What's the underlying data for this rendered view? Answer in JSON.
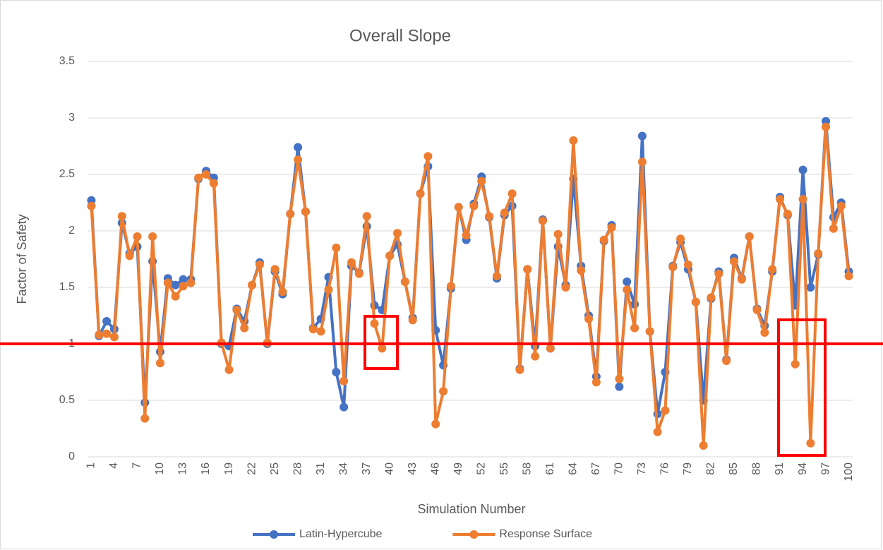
{
  "chart_data": {
    "type": "line",
    "title": "Overall Slope",
    "xlabel": "Simulation Number",
    "ylabel": "Factor of Safety",
    "categories": [
      1,
      null,
      null,
      4,
      null,
      null,
      7,
      null,
      null,
      10,
      null,
      null,
      13,
      null,
      null,
      16,
      null,
      null,
      19,
      null,
      null,
      22,
      null,
      null,
      25,
      null,
      null,
      28,
      null,
      null,
      31,
      null,
      null,
      34,
      null,
      null,
      37,
      null,
      null,
      40,
      null,
      null,
      43,
      null,
      null,
      46,
      null,
      null,
      49,
      null,
      null,
      52,
      null,
      null,
      55,
      null,
      null,
      58,
      null,
      null,
      61,
      null,
      null,
      64,
      null,
      null,
      67,
      null,
      null,
      70,
      null,
      null,
      73,
      null,
      null,
      76,
      null,
      null,
      79,
      null,
      null,
      82,
      null,
      null,
      85,
      null,
      null,
      88,
      null,
      null,
      91,
      null,
      null,
      94,
      null,
      null,
      97,
      null,
      null,
      100
    ],
    "series": [
      {
        "name": "Latin-Hypercube",
        "color": "#4472c4",
        "values": [
          2.27,
          1.07,
          1.2,
          1.13,
          2.07,
          1.8,
          1.86,
          0.48,
          1.73,
          0.93,
          1.58,
          1.52,
          1.57,
          1.57,
          2.46,
          2.53,
          2.47,
          1.0,
          0.98,
          1.31,
          1.2,
          1.52,
          1.72,
          1.0,
          1.64,
          1.44,
          2.15,
          2.74,
          2.17,
          1.14,
          1.22,
          1.59,
          0.75,
          0.44,
          1.69,
          1.63,
          2.04,
          1.34,
          1.3,
          1.78,
          1.88,
          1.55,
          1.23,
          2.33,
          2.57,
          1.12,
          0.81,
          1.49,
          2.21,
          1.92,
          2.24,
          2.48,
          2.12,
          1.58,
          2.14,
          2.22,
          0.78,
          1.66,
          0.98,
          2.1,
          0.96,
          1.86,
          1.52,
          2.46,
          1.69,
          1.25,
          0.71,
          1.91,
          2.05,
          0.62,
          1.55,
          1.35,
          2.84,
          1.11,
          0.38,
          0.75,
          1.69,
          1.9,
          1.66,
          1.37,
          0.5,
          1.4,
          1.64,
          0.86,
          1.76,
          1.58,
          1.95,
          1.31,
          1.16,
          1.64,
          2.3,
          2.14,
          1.34,
          2.54,
          1.5,
          1.79,
          2.97,
          2.12,
          2.25,
          1.64
        ]
      },
      {
        "name": "Response Surface",
        "color": "#ed7d31",
        "values": [
          2.22,
          1.08,
          1.09,
          1.06,
          2.13,
          1.78,
          1.95,
          0.34,
          1.95,
          0.83,
          1.54,
          1.42,
          1.51,
          1.54,
          2.47,
          2.5,
          2.42,
          1.01,
          0.77,
          1.3,
          1.14,
          1.52,
          1.7,
          1.01,
          1.66,
          1.46,
          2.15,
          2.63,
          2.17,
          1.13,
          1.11,
          1.48,
          1.85,
          0.67,
          1.72,
          1.62,
          2.13,
          1.18,
          0.96,
          1.78,
          1.98,
          1.55,
          1.21,
          2.33,
          2.66,
          0.29,
          0.58,
          1.51,
          2.21,
          1.96,
          2.22,
          2.44,
          2.13,
          1.6,
          2.16,
          2.33,
          0.77,
          1.66,
          0.89,
          2.09,
          0.96,
          1.97,
          1.5,
          2.8,
          1.65,
          1.22,
          0.66,
          1.92,
          2.03,
          0.69,
          1.48,
          1.14,
          2.61,
          1.11,
          0.22,
          0.41,
          1.68,
          1.93,
          1.7,
          1.37,
          0.1,
          1.41,
          1.62,
          0.85,
          1.73,
          1.57,
          1.95,
          1.3,
          1.1,
          1.66,
          2.28,
          2.15,
          0.82,
          2.28,
          0.12,
          1.8,
          2.92,
          2.02,
          2.22,
          1.6
        ]
      }
    ],
    "ylim": [
      0,
      3.5
    ],
    "yticks": [
      0,
      0.5,
      1,
      1.5,
      2,
      2.5,
      3,
      3.5
    ],
    "grid": true,
    "legend": "bottom",
    "reference_line": {
      "value": 1,
      "color": "#ff0000"
    }
  }
}
